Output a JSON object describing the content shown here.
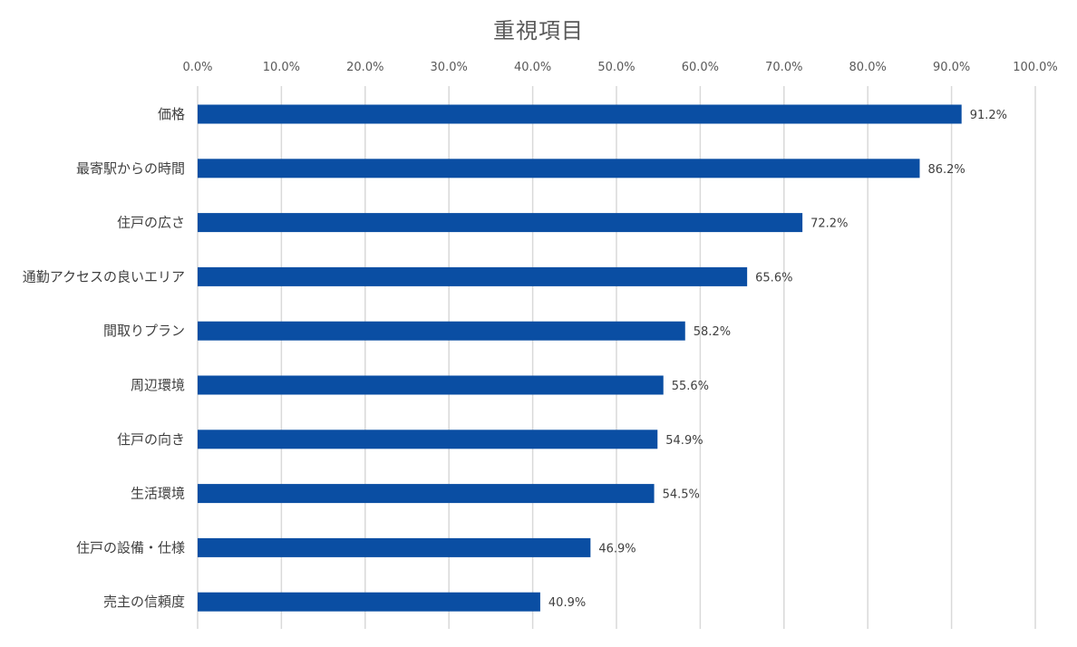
{
  "chart_data": {
    "type": "bar",
    "orientation": "horizontal",
    "title": "重視項目",
    "xlabel": "",
    "ylabel": "",
    "xlim": [
      0,
      100
    ],
    "tick_values": [
      0,
      10,
      20,
      30,
      40,
      50,
      60,
      70,
      80,
      90,
      100
    ],
    "tick_labels": [
      "0.0%",
      "10.0%",
      "20.0%",
      "30.0%",
      "40.0%",
      "50.0%",
      "60.0%",
      "70.0%",
      "80.0%",
      "90.0%",
      "100.0%"
    ],
    "axis_position": "top",
    "grid": true,
    "legend": false,
    "bar_color": "#0a4ea3",
    "gridline_color": "#d9d9d9",
    "categories": [
      "価格",
      "最寄駅からの時間",
      "住戸の広さ",
      "通勤アクセスの良いエリア",
      "間取りプラン",
      "周辺環境",
      "住戸の向き",
      "生活環境",
      "住戸の設備・仕様",
      "売主の信頼度"
    ],
    "values": [
      91.2,
      86.2,
      72.2,
      65.6,
      58.2,
      55.6,
      54.9,
      54.5,
      46.9,
      40.9
    ],
    "data_labels": [
      "91.2%",
      "86.2%",
      "72.2%",
      "65.6%",
      "58.2%",
      "55.6%",
      "54.9%",
      "54.5%",
      "46.9%",
      "40.9%"
    ]
  }
}
